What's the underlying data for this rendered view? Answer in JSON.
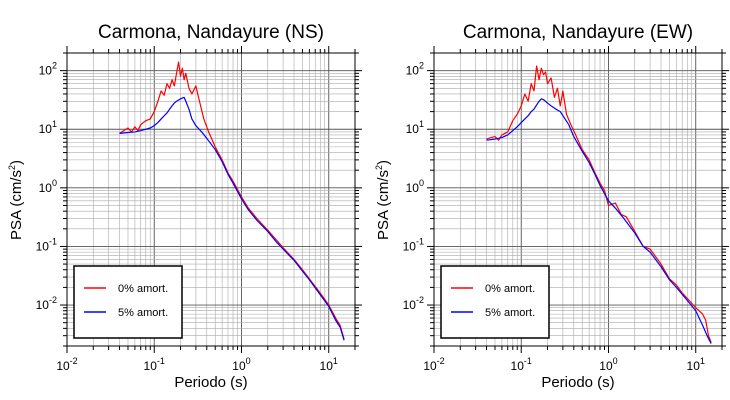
{
  "chart_data": [
    {
      "type": "line",
      "title": "Carmona, Nandayure (NS)",
      "xlabel": "Periodo (s)",
      "ylabel_main": "PSA (cm/s",
      "ylabel_sup": "2",
      "ylabel_end": ")",
      "xscale": "log",
      "yscale": "log",
      "xlim": [
        0.01,
        20
      ],
      "ylim": [
        0.002,
        200
      ],
      "grid": true,
      "legend_position": "bottom-left",
      "x_ticks": [
        {
          "base": "10",
          "exp": "-2",
          "value": 0.01
        },
        {
          "base": "10",
          "exp": "-1",
          "value": 0.1
        },
        {
          "base": "10",
          "exp": "0",
          "value": 1
        },
        {
          "base": "10",
          "exp": "1",
          "value": 10
        }
      ],
      "y_ticks": [
        {
          "base": "10",
          "exp": "-2",
          "value": 0.01
        },
        {
          "base": "10",
          "exp": "-1",
          "value": 0.1
        },
        {
          "base": "10",
          "exp": "0",
          "value": 1
        },
        {
          "base": "10",
          "exp": "1",
          "value": 10
        },
        {
          "base": "10",
          "exp": "2",
          "value": 100
        }
      ],
      "series": [
        {
          "name": "0% amort.",
          "color": "#ff0000",
          "points": [
            [
              0.04,
              8.5
            ],
            [
              0.045,
              9.5
            ],
            [
              0.05,
              10.5
            ],
            [
              0.055,
              9.0
            ],
            [
              0.06,
              11.0
            ],
            [
              0.065,
              9.5
            ],
            [
              0.07,
              12.0
            ],
            [
              0.08,
              14.0
            ],
            [
              0.09,
              15.0
            ],
            [
              0.1,
              20.0
            ],
            [
              0.11,
              30.0
            ],
            [
              0.12,
              45.0
            ],
            [
              0.13,
              38.0
            ],
            [
              0.14,
              60.0
            ],
            [
              0.15,
              50.0
            ],
            [
              0.16,
              70.0
            ],
            [
              0.17,
              55.0
            ],
            [
              0.18,
              90.0
            ],
            [
              0.19,
              140.0
            ],
            [
              0.2,
              80.0
            ],
            [
              0.21,
              110.0
            ],
            [
              0.22,
              70.0
            ],
            [
              0.23,
              90.0
            ],
            [
              0.25,
              50.0
            ],
            [
              0.27,
              40.0
            ],
            [
              0.3,
              55.0
            ],
            [
              0.33,
              30.0
            ],
            [
              0.37,
              15.0
            ],
            [
              0.42,
              9.0
            ],
            [
              0.5,
              5.0
            ],
            [
              0.6,
              3.0
            ],
            [
              0.7,
              1.8
            ],
            [
              0.8,
              1.3
            ],
            [
              1.0,
              0.7
            ],
            [
              1.2,
              0.45
            ],
            [
              1.5,
              0.3
            ],
            [
              2.0,
              0.19
            ],
            [
              2.5,
              0.13
            ],
            [
              3.0,
              0.095
            ],
            [
              4.0,
              0.06
            ],
            [
              5.0,
              0.04
            ],
            [
              6.0,
              0.028
            ],
            [
              8.0,
              0.016
            ],
            [
              10.0,
              0.01
            ],
            [
              12.0,
              0.006
            ],
            [
              13.5,
              0.0045
            ],
            [
              15.0,
              0.0026
            ]
          ]
        },
        {
          "name": "5% amort.",
          "color": "#0000ff",
          "points": [
            [
              0.04,
              8.5
            ],
            [
              0.05,
              8.8
            ],
            [
              0.06,
              9.0
            ],
            [
              0.07,
              9.5
            ],
            [
              0.08,
              10.0
            ],
            [
              0.09,
              10.5
            ],
            [
              0.1,
              11.5
            ],
            [
              0.11,
              13.0
            ],
            [
              0.12,
              15.0
            ],
            [
              0.13,
              17.0
            ],
            [
              0.14,
              19.0
            ],
            [
              0.15,
              22.0
            ],
            [
              0.16,
              25.0
            ],
            [
              0.17,
              28.0
            ],
            [
              0.18,
              30.0
            ],
            [
              0.2,
              33.0
            ],
            [
              0.22,
              35.0
            ],
            [
              0.23,
              30.0
            ],
            [
              0.25,
              22.0
            ],
            [
              0.27,
              15.0
            ],
            [
              0.3,
              11.5
            ],
            [
              0.35,
              9.0
            ],
            [
              0.4,
              7.0
            ],
            [
              0.5,
              4.5
            ],
            [
              0.6,
              2.8
            ],
            [
              0.7,
              1.7
            ],
            [
              0.8,
              1.2
            ],
            [
              1.0,
              0.65
            ],
            [
              1.2,
              0.42
            ],
            [
              1.5,
              0.28
            ],
            [
              2.0,
              0.18
            ],
            [
              2.5,
              0.12
            ],
            [
              3.0,
              0.09
            ],
            [
              4.0,
              0.058
            ],
            [
              5.0,
              0.038
            ],
            [
              6.0,
              0.027
            ],
            [
              8.0,
              0.015
            ],
            [
              10.0,
              0.0095
            ],
            [
              12.0,
              0.0055
            ],
            [
              13.5,
              0.0042
            ],
            [
              15.0,
              0.0025
            ]
          ]
        }
      ]
    },
    {
      "type": "line",
      "title": "Carmona, Nandayure (EW)",
      "xlabel": "Periodo (s)",
      "ylabel_main": "PSA (cm/s",
      "ylabel_sup": "2",
      "ylabel_end": ")",
      "xscale": "log",
      "yscale": "log",
      "xlim": [
        0.01,
        20
      ],
      "ylim": [
        0.002,
        200
      ],
      "grid": true,
      "legend_position": "bottom-left",
      "x_ticks": [
        {
          "base": "10",
          "exp": "-2",
          "value": 0.01
        },
        {
          "base": "10",
          "exp": "-1",
          "value": 0.1
        },
        {
          "base": "10",
          "exp": "0",
          "value": 1
        },
        {
          "base": "10",
          "exp": "1",
          "value": 10
        }
      ],
      "y_ticks": [
        {
          "base": "10",
          "exp": "-2",
          "value": 0.01
        },
        {
          "base": "10",
          "exp": "-1",
          "value": 0.1
        },
        {
          "base": "10",
          "exp": "0",
          "value": 1
        },
        {
          "base": "10",
          "exp": "1",
          "value": 10
        },
        {
          "base": "10",
          "exp": "2",
          "value": 100
        }
      ],
      "series": [
        {
          "name": "0% amort.",
          "color": "#ff0000",
          "points": [
            [
              0.04,
              6.8
            ],
            [
              0.045,
              7.2
            ],
            [
              0.05,
              7.5
            ],
            [
              0.055,
              6.5
            ],
            [
              0.06,
              8.0
            ],
            [
              0.07,
              9.0
            ],
            [
              0.08,
              14.0
            ],
            [
              0.09,
              18.0
            ],
            [
              0.1,
              25.0
            ],
            [
              0.11,
              40.0
            ],
            [
              0.12,
              30.0
            ],
            [
              0.13,
              60.0
            ],
            [
              0.14,
              45.0
            ],
            [
              0.15,
              120.0
            ],
            [
              0.16,
              70.0
            ],
            [
              0.17,
              110.0
            ],
            [
              0.18,
              85.0
            ],
            [
              0.19,
              95.0
            ],
            [
              0.2,
              60.0
            ],
            [
              0.22,
              75.0
            ],
            [
              0.24,
              35.0
            ],
            [
              0.26,
              50.0
            ],
            [
              0.28,
              25.0
            ],
            [
              0.3,
              45.0
            ],
            [
              0.33,
              18.0
            ],
            [
              0.37,
              12.0
            ],
            [
              0.42,
              8.0
            ],
            [
              0.5,
              4.5
            ],
            [
              0.6,
              3.0
            ],
            [
              0.7,
              1.8
            ],
            [
              0.8,
              1.2
            ],
            [
              0.9,
              0.9
            ],
            [
              1.0,
              0.5
            ],
            [
              1.2,
              0.55
            ],
            [
              1.4,
              0.35
            ],
            [
              1.6,
              0.32
            ],
            [
              2.0,
              0.18
            ],
            [
              2.5,
              0.1
            ],
            [
              3.0,
              0.09
            ],
            [
              4.0,
              0.05
            ],
            [
              5.0,
              0.028
            ],
            [
              6.0,
              0.022
            ],
            [
              7.0,
              0.016
            ],
            [
              8.0,
              0.013
            ],
            [
              10.0,
              0.009
            ],
            [
              12.0,
              0.007
            ],
            [
              13.0,
              0.0055
            ],
            [
              14.0,
              0.003
            ],
            [
              15.0,
              0.0023
            ]
          ]
        },
        {
          "name": "5% amort.",
          "color": "#0000ff",
          "points": [
            [
              0.04,
              6.5
            ],
            [
              0.05,
              6.8
            ],
            [
              0.06,
              7.2
            ],
            [
              0.07,
              8.0
            ],
            [
              0.08,
              9.5
            ],
            [
              0.09,
              11.0
            ],
            [
              0.1,
              13.0
            ],
            [
              0.11,
              15.0
            ],
            [
              0.12,
              17.0
            ],
            [
              0.13,
              20.0
            ],
            [
              0.14,
              22.0
            ],
            [
              0.15,
              26.0
            ],
            [
              0.16,
              30.0
            ],
            [
              0.17,
              33.0
            ],
            [
              0.18,
              32.0
            ],
            [
              0.2,
              28.0
            ],
            [
              0.22,
              25.0
            ],
            [
              0.25,
              22.0
            ],
            [
              0.28,
              20.0
            ],
            [
              0.3,
              17.0
            ],
            [
              0.35,
              12.0
            ],
            [
              0.4,
              7.5
            ],
            [
              0.5,
              4.2
            ],
            [
              0.6,
              2.7
            ],
            [
              0.7,
              1.7
            ],
            [
              0.8,
              1.1
            ],
            [
              1.0,
              0.6
            ],
            [
              1.2,
              0.45
            ],
            [
              1.5,
              0.3
            ],
            [
              2.0,
              0.17
            ],
            [
              2.5,
              0.1
            ],
            [
              3.0,
              0.08
            ],
            [
              4.0,
              0.045
            ],
            [
              5.0,
              0.027
            ],
            [
              6.0,
              0.02
            ],
            [
              8.0,
              0.012
            ],
            [
              10.0,
              0.008
            ],
            [
              12.0,
              0.0045
            ],
            [
              13.5,
              0.003
            ],
            [
              15.0,
              0.0022
            ]
          ]
        }
      ]
    }
  ]
}
